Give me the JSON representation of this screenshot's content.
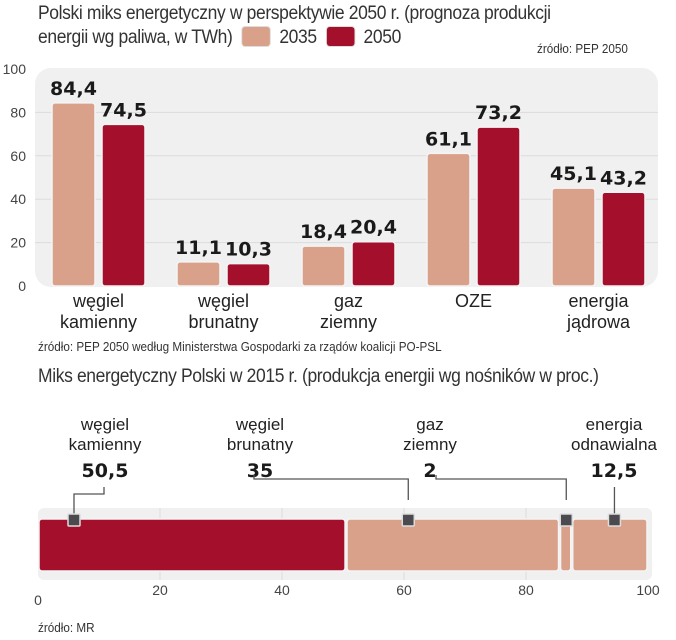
{
  "colors": {
    "c2035": "#d9a08a",
    "c2050": "#a40f2c",
    "marker": "#4b4b4f"
  },
  "chart_data": [
    {
      "type": "bar",
      "title_line1": "Polski miks energetyczny w perspektywie 2050 r. (prognoza produkcji",
      "title_line2": "energii wg paliwa, w TWh)",
      "source_top": "źródło: PEP 2050",
      "source_bottom": "źródło: PEP 2050 według Ministerstwa Gospodarki za rządów koalicji PO-PSL",
      "categories": [
        [
          "węgiel",
          "kamienny"
        ],
        [
          "węgiel",
          "brunatny"
        ],
        [
          "gaz",
          "ziemny"
        ],
        [
          "OZE",
          ""
        ],
        [
          "energia",
          "jądrowa"
        ]
      ],
      "series": [
        {
          "name": "2035",
          "values": [
            84.4,
            11.1,
            18.4,
            61.1,
            45.1
          ],
          "labels": [
            "84,4",
            "11,1",
            "18,4",
            "61,1",
            "45,1"
          ]
        },
        {
          "name": "2050",
          "values": [
            74.5,
            10.3,
            20.4,
            73.2,
            43.2
          ],
          "labels": [
            "74,5",
            "10,3",
            "20,4",
            "73,2",
            "43,2"
          ]
        }
      ],
      "ylim": [
        0,
        100
      ],
      "yticks": [
        "0",
        "20",
        "40",
        "60",
        "80",
        "100"
      ],
      "grid": true,
      "legend": "top-inline"
    },
    {
      "type": "bar",
      "orientation": "horizontal-stacked",
      "title": "Miks energetyczny Polski w 2015 r. (produkcja energii wg nośników w proc.)",
      "source": "źródło: MR",
      "segments": [
        {
          "name": [
            "węgiel",
            "kamienny"
          ],
          "value": 50.5,
          "label": "50,5",
          "color": "#a40f2c"
        },
        {
          "name": [
            "węgiel",
            "brunatny"
          ],
          "value": 35,
          "label": "35",
          "color": "#d9a08a"
        },
        {
          "name": [
            "gaz",
            "ziemny"
          ],
          "value": 2,
          "label": "2",
          "color": "#d9a08a"
        },
        {
          "name": [
            "energia",
            "odnawialna"
          ],
          "value": 12.5,
          "label": "12,5",
          "color": "#d9a08a"
        }
      ],
      "xlim": [
        0,
        100
      ],
      "xticks": [
        "0",
        "20",
        "40",
        "60",
        "80",
        "100"
      ],
      "grid": true
    }
  ]
}
